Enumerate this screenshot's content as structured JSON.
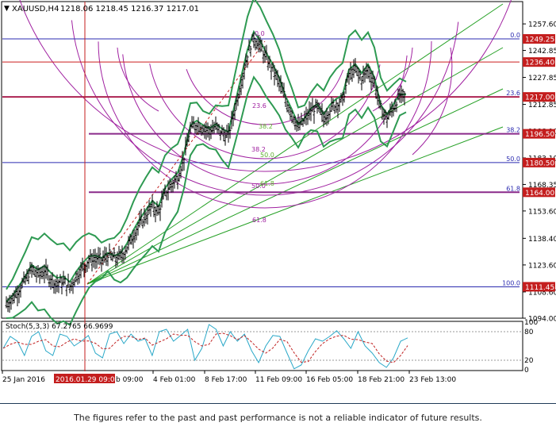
{
  "header": {
    "symbol": "XAUUSD,H4",
    "ohlc": "1218.06 1218.45 1216.37 1217.01"
  },
  "stoch_label": "Stoch(5,3,3) 67.2765 66.9699",
  "disclaimer": "The figures refer to the past and past performance is not a reliable indicator of future results.",
  "colors": {
    "candles": "#000000",
    "bollinger": "#2e9a52",
    "fib_fan": "#25a025",
    "fib_arcs": "#a020a0",
    "fib_levels_red": "#cc1f1f",
    "fib_levels_blue": "#2b2bb0",
    "price_badge": "#c41e1e",
    "stoch_main": "#2aa8c8",
    "stoch_signal": "#c02020",
    "cursor_line": "#c41e1e"
  },
  "chart_data": {
    "type": "candlestick",
    "symbol": "XAUUSD",
    "timeframe": "H4",
    "last_close": 1217.01,
    "y_axis_ticks": [
      1257.6,
      1242.85,
      1227.85,
      1212.85,
      1198.1,
      1183.1,
      1168.35,
      1153.6,
      1138.4,
      1123.6,
      1108.6,
      1094.0
    ],
    "ylim": [
      1094.0,
      1270.0
    ],
    "price_badges": [
      1249.25,
      1236.4,
      1217.0,
      1196.5,
      1180.5,
      1164.0,
      1111.45
    ],
    "x_axis_labels": [
      "25 Jan 2016",
      "2016.01.29 09:00",
      "4 Feb 01:00",
      "8 Feb 17:00",
      "11 Feb 09:00",
      "16 Feb 05:00",
      "18 Feb 21:00",
      "23 Feb 13:00"
    ],
    "x_tick_fragments": [
      "b 09:00"
    ],
    "highlighted_time": "2016.01.29 09:00",
    "fibonacci_retracement": {
      "levels": [
        {
          "label": "0.0",
          "price": 1249.25
        },
        {
          "label": "23.6",
          "price": 1217.0
        },
        {
          "label": "38.2",
          "price": 1196.5
        },
        {
          "label": "50.0",
          "price": 1180.5
        },
        {
          "label": "61.8",
          "price": 1164.0
        },
        {
          "label": "100.0",
          "price": 1111.45
        }
      ]
    },
    "fibonacci_arc_labels": [
      "0.0",
      "23.6",
      "38.2",
      "50.0",
      "61.8"
    ],
    "fibonacci_fan_labels": [
      "38.2",
      "50.0",
      "61.8"
    ],
    "price_approx": [
      1102,
      1105,
      1110,
      1115,
      1121,
      1118,
      1120,
      1116,
      1113,
      1114,
      1111,
      1117,
      1122,
      1126,
      1127,
      1126,
      1129,
      1127,
      1128,
      1133,
      1140,
      1146,
      1151,
      1156,
      1153,
      1163,
      1168,
      1172,
      1183,
      1199,
      1202,
      1200,
      1198,
      1200,
      1197,
      1195,
      1210,
      1225,
      1240,
      1250,
      1245,
      1238,
      1232,
      1225,
      1215,
      1208,
      1200,
      1204,
      1209,
      1211,
      1205,
      1210,
      1213,
      1215,
      1229,
      1232,
      1227,
      1232,
      1225,
      1210,
      1205,
      1211,
      1217,
      1217
    ],
    "stochastic": {
      "params": "5,3,3",
      "main_last": 67.2765,
      "signal_last": 66.9699,
      "levels": [
        20,
        80
      ],
      "axis_ticks": [
        100,
        80,
        20,
        0
      ],
      "main_approx": [
        45,
        70,
        60,
        30,
        70,
        80,
        40,
        30,
        75,
        70,
        50,
        60,
        72,
        35,
        25,
        75,
        80,
        55,
        75,
        60,
        65,
        30,
        80,
        85,
        60,
        72,
        85,
        20,
        45,
        95,
        85,
        50,
        80,
        60,
        75,
        40,
        15,
        50,
        72,
        70,
        35,
        2,
        10,
        40,
        65,
        60,
        70,
        82,
        65,
        45,
        80,
        50,
        35,
        15,
        5,
        25,
        60,
        67
      ]
    }
  }
}
